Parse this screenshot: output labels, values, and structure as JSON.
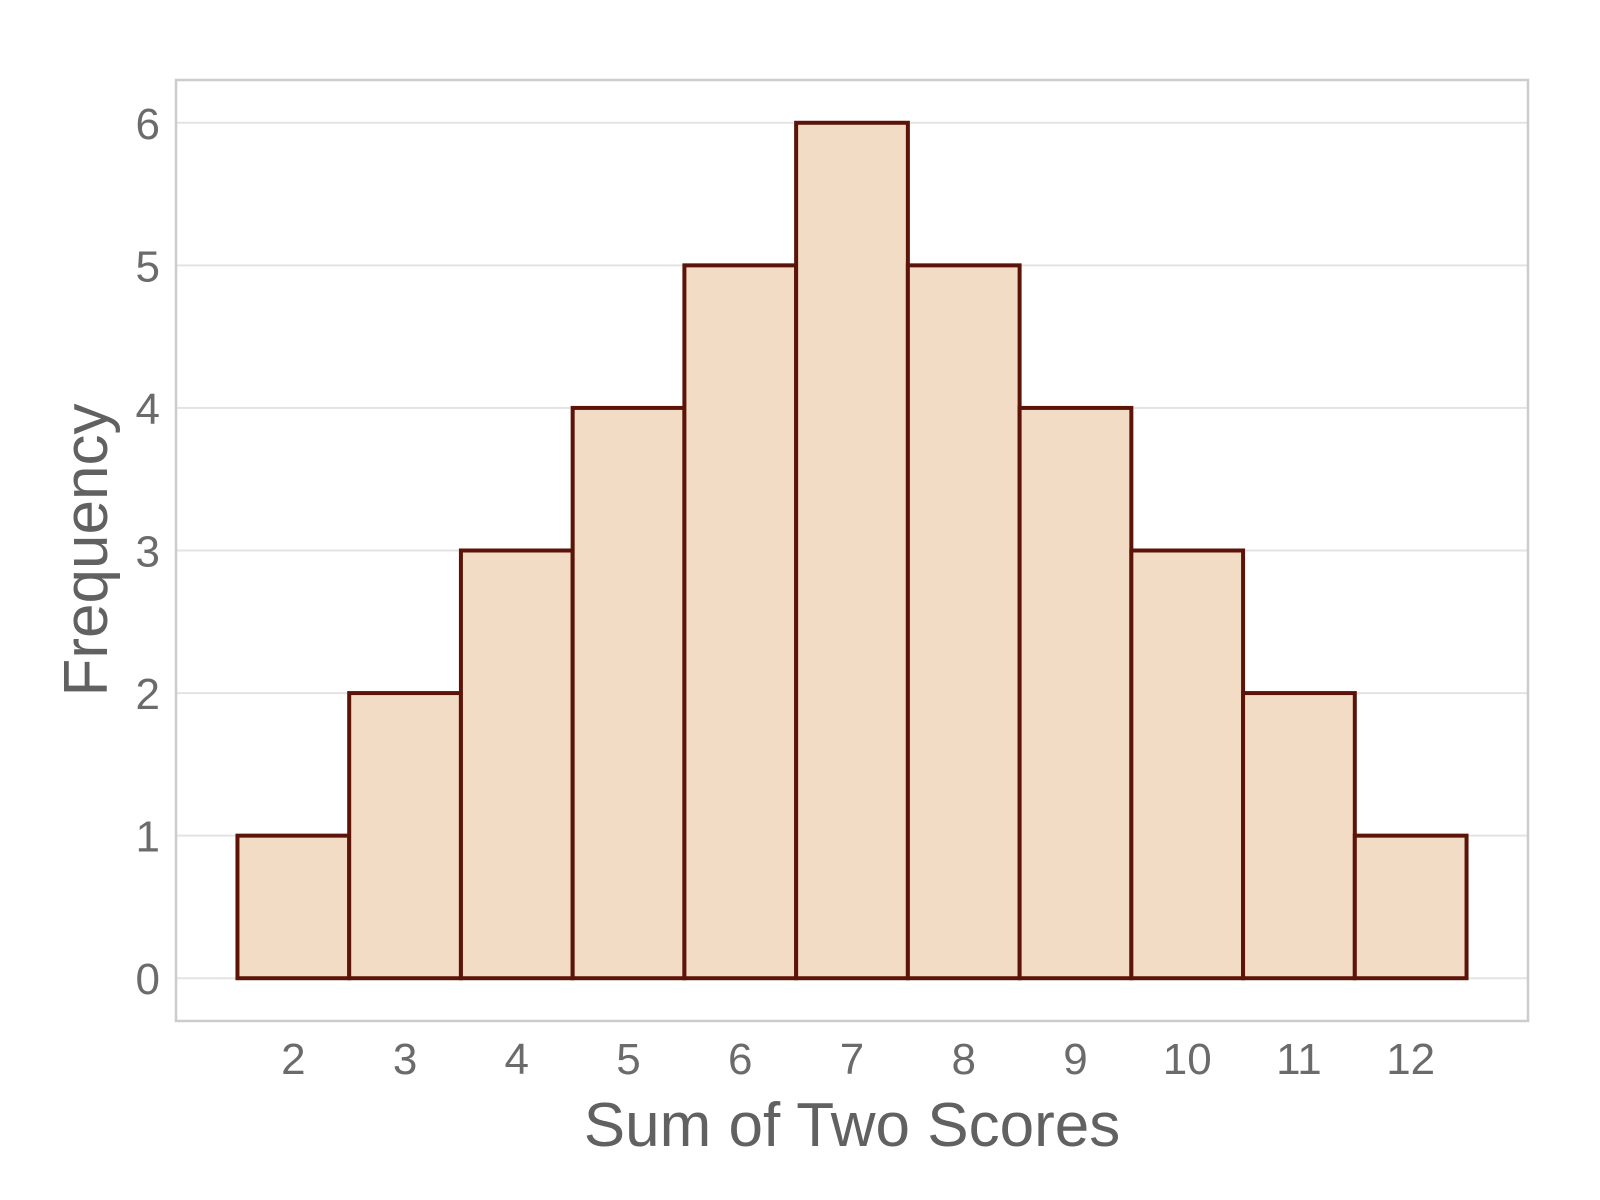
{
  "chart_data": {
    "type": "bar",
    "title": "",
    "xlabel": "Sum of Two Scores",
    "ylabel": "Frequency",
    "categories": [
      "2",
      "3",
      "4",
      "5",
      "6",
      "7",
      "8",
      "9",
      "10",
      "11",
      "12"
    ],
    "values": [
      1,
      2,
      3,
      4,
      5,
      6,
      5,
      4,
      3,
      2,
      1
    ],
    "ylim": [
      -0.3,
      6.3
    ],
    "xlim": [
      0.95,
      13.05
    ],
    "y_ticks": [
      "0",
      "1",
      "2",
      "3",
      "4",
      "5",
      "6"
    ],
    "grid": "horizontal",
    "legend": "none",
    "colors": {
      "bar_fill": "#f3dcc5",
      "bar_stroke": "#5c1409",
      "grid": "#e3e3e3",
      "panel_border": "#cccccc",
      "text": "#666666"
    }
  }
}
